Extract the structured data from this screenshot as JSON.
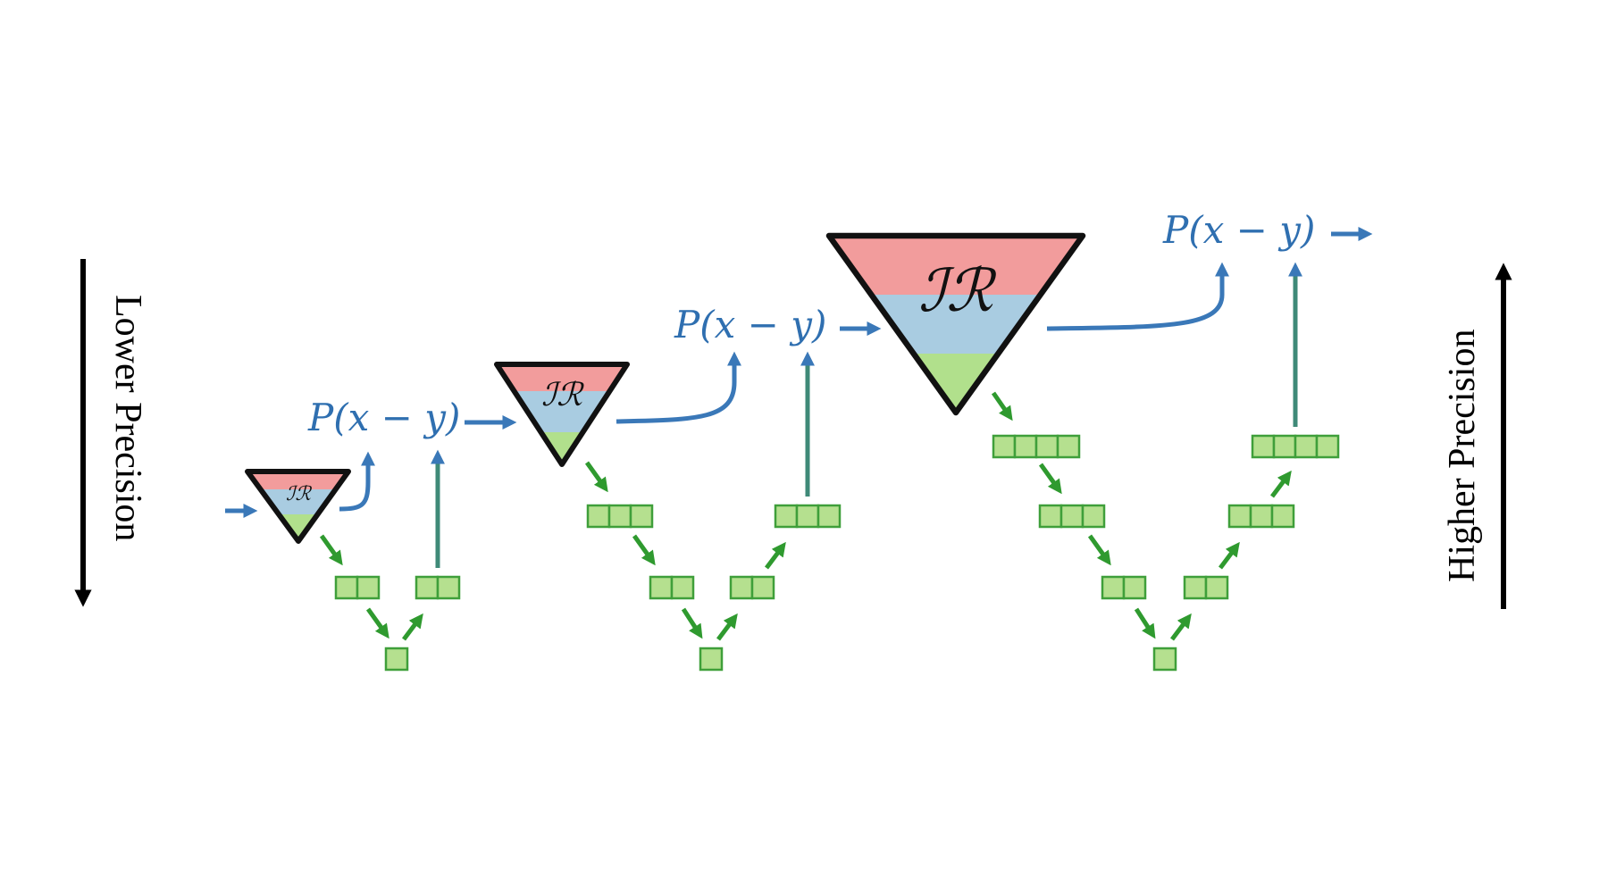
{
  "labels": {
    "ir": "ℐℛ",
    "p_xy": "P(x − y)",
    "lower_precision": "Lower Precision",
    "higher_precision": "Higher Precision"
  },
  "colors": {
    "blue": "#3a78b8",
    "blue_text": "#2f6fb0",
    "green": "#2f9a2f",
    "green_fill": "#b5e08f",
    "green_stroke": "#3f9f3a",
    "teal": "#3f8a78",
    "red_band": "#f29c9c",
    "blue_band": "#a9cce1",
    "green_band": "#b1e08c",
    "black": "#000000"
  }
}
